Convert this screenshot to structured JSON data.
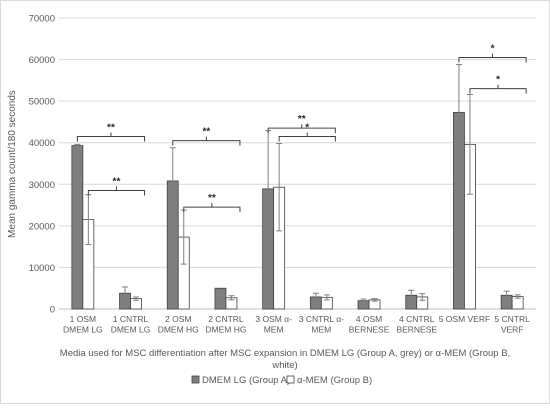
{
  "chart_data": {
    "type": "bar",
    "title": "",
    "ylabel": "Mean gamma count/180 seconds",
    "xlabel": "Media used for MSC differentiation after MSC expansion in DMEM LG (Group A, grey) or α-MEM (Group B, white)",
    "xlabel_lines": [
      "Media used for MSC differentiation after MSC expansion in DMEM LG (Group A, grey) or α-MEM (Group B,",
      "white)"
    ],
    "ylim": [
      0,
      70000
    ],
    "yticks": [
      0,
      10000,
      20000,
      30000,
      40000,
      50000,
      60000,
      70000
    ],
    "ytick_labels": [
      "0",
      "10000",
      "20000",
      "30000",
      "40000",
      "50000",
      "60000",
      "70000"
    ],
    "grid": true,
    "legend_position": "bottom",
    "categories": [
      [
        "1 OSM",
        "DMEM LG"
      ],
      [
        "1 CNTRL",
        "DMEM LG"
      ],
      [
        "2 OSM",
        "DMEM HG"
      ],
      [
        "2 CNTRL",
        "DMEM HG"
      ],
      [
        "3 OSM α-",
        "MEM"
      ],
      [
        "3 CNTRL α-",
        "MEM"
      ],
      [
        "4 OSM",
        "BERNESE"
      ],
      [
        "4 CNTRL",
        "BERNESE"
      ],
      [
        "5 OSM VERF",
        ""
      ],
      [
        "5 CNTRL",
        "VERF"
      ]
    ],
    "series": [
      {
        "name": "DMEM LG (Group A)",
        "color": "#7f7f7f",
        "values": [
          39300,
          3800,
          30800,
          5000,
          28900,
          2900,
          2000,
          3300,
          47300,
          3300
        ],
        "errors": [
          300,
          1500,
          8000,
          0,
          14000,
          900,
          400,
          1200,
          11500,
          1000
        ]
      },
      {
        "name": "α-MEM (Group B)",
        "color": "#ffffff",
        "values": [
          21500,
          2500,
          17300,
          2700,
          29300,
          2800,
          2200,
          2900,
          39600,
          3000
        ],
        "errors": [
          6000,
          400,
          6500,
          500,
          10500,
          600,
          300,
          800,
          12000,
          400
        ]
      }
    ],
    "annotations": [
      {
        "text": "**",
        "from": {
          "category": 0,
          "series": 0
        },
        "to": {
          "category": 1,
          "series": 0
        },
        "y": 41500
      },
      {
        "text": "**",
        "from": {
          "category": 0,
          "series": 1
        },
        "to": {
          "category": 1,
          "series": 1
        },
        "y": 28500
      },
      {
        "text": "**",
        "from": {
          "category": 2,
          "series": 0
        },
        "to": {
          "category": 3,
          "series": 0
        },
        "y": 40500
      },
      {
        "text": "**",
        "from": {
          "category": 2,
          "series": 1
        },
        "to": {
          "category": 3,
          "series": 1
        },
        "y": 24500
      },
      {
        "text": "**",
        "from": {
          "category": 4,
          "series": 0
        },
        "to": {
          "category": 5,
          "series": 0
        },
        "y": 43500
      },
      {
        "text": "*",
        "from": {
          "category": 4,
          "series": 1
        },
        "to": {
          "category": 5,
          "series": 1
        },
        "y": 41500
      },
      {
        "text": "*",
        "from": {
          "category": 8,
          "series": 0
        },
        "to": {
          "category": 9,
          "series": 0
        },
        "y": 60500
      },
      {
        "text": "*",
        "from": {
          "category": 8,
          "series": 1
        },
        "to": {
          "category": 9,
          "series": 1
        },
        "y": 53000
      }
    ]
  }
}
